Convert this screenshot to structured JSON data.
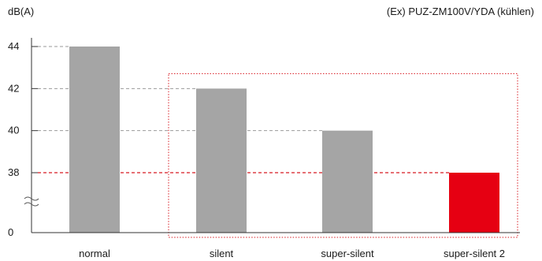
{
  "chart_data": {
    "type": "bar",
    "unit_label": "dB(A)",
    "model_label": "(Ex) PUZ-ZM100V/YDA (kühlen)",
    "categories": [
      "normal",
      "silent",
      "super-silent",
      "super-silent 2"
    ],
    "values": [
      44,
      42,
      40,
      38
    ],
    "y_ticks": [
      {
        "value": 44,
        "label": "44"
      },
      {
        "value": 42,
        "label": "42"
      },
      {
        "value": 40,
        "label": "40"
      },
      {
        "value": 38,
        "label": "38"
      },
      {
        "value": 0,
        "label": "0"
      }
    ],
    "y_axis_break": "between 0 and 38",
    "highlighted_category": "super-silent 2",
    "highlight_group": [
      "silent",
      "super-silent",
      "super-silent 2"
    ],
    "grid": "dashed reference lines at bar tops",
    "colors": {
      "bar": "#a5a5a5",
      "highlight_bar": "#e60012",
      "reference_line": "#9a9a9a",
      "highlight_line": "#d71920",
      "highlight_frame": "#d71920",
      "axis": "#333333"
    }
  }
}
